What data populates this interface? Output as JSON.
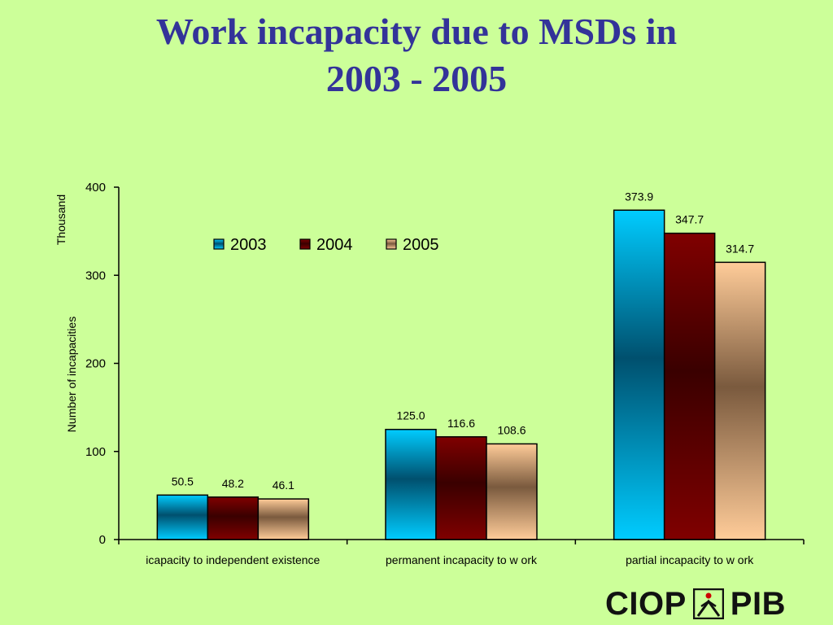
{
  "chart_data": {
    "type": "bar",
    "title": "Work incapacity due to MSDs in 2003 - 2005",
    "title_lines": [
      "Work incapacity due to MSDs in",
      "2003 - 2005"
    ],
    "categories": [
      "icapacity to independent existence",
      "permanent incapacity to w ork",
      "partial incapacity to w ork"
    ],
    "series": [
      {
        "name": "2003",
        "values": [
          50.5,
          125.0,
          373.9
        ],
        "labels": [
          "50.5",
          "125.0",
          "373.9"
        ],
        "color": "#00ccff"
      },
      {
        "name": "2004",
        "values": [
          48.2,
          116.6,
          347.7
        ],
        "labels": [
          "48.2",
          "116.6",
          "347.7"
        ],
        "color": "#800000"
      },
      {
        "name": "2005",
        "values": [
          46.1,
          108.6,
          314.7
        ],
        "labels": [
          "46.1",
          "108.6",
          "314.7"
        ],
        "color": "#ffcc99"
      }
    ],
    "ylabel": "Number of incapacities",
    "yunit": "Thousand",
    "ylim": [
      0,
      400
    ],
    "yticks": [
      0,
      100,
      200,
      300,
      400
    ],
    "grid": false,
    "legend": "top-left"
  },
  "logo": {
    "left_text": "CIOP",
    "right_text": "PIB"
  }
}
